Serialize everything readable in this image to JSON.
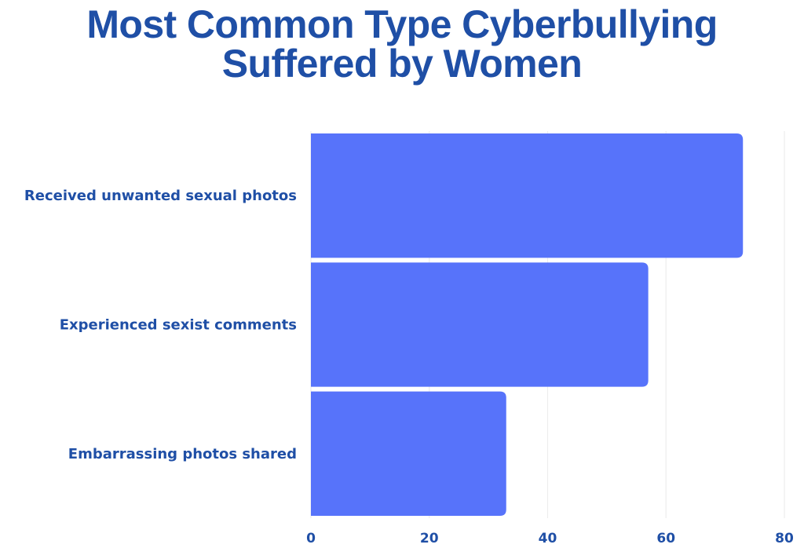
{
  "chart_data": {
    "type": "bar",
    "orientation": "horizontal",
    "title_lines": [
      "Most Common Type Cyberbullying",
      "Suffered by Women"
    ],
    "categories": [
      "Received unwanted sexual photos",
      "Experienced sexist comments",
      "Embarrassing photos shared"
    ],
    "values": [
      73,
      57,
      33
    ],
    "xlim": [
      0,
      80
    ],
    "xticks": [
      "0",
      "20",
      "40",
      "60",
      "80"
    ],
    "grid": true,
    "bar_color": "#5773fa",
    "text_color": "#1f4fa6"
  }
}
